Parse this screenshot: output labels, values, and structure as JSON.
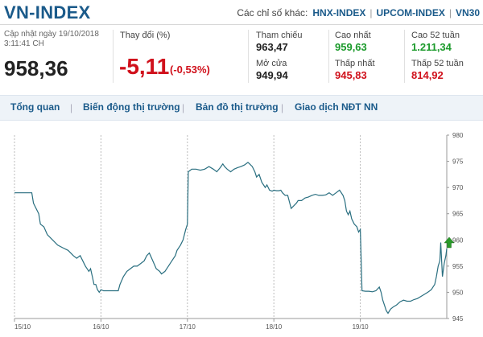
{
  "header": {
    "index_name": "VN-INDEX",
    "other_label": "Các chỉ số khác:",
    "links": [
      "HNX-INDEX",
      "UPCOM-INDEX",
      "VN30"
    ],
    "separators": [
      "|",
      "|"
    ]
  },
  "stats": {
    "updated_line1": "Cập nhật ngày 19/10/2018",
    "updated_line2": "3:11:41 CH",
    "current_value": "958,36",
    "change_label": "Thay đổi (%)",
    "change_value": "-5,11",
    "change_percent": "(-0,53%)",
    "ref_label": "Tham chiếu",
    "ref_value": "963,47",
    "open_label": "Mở cửa",
    "open_value": "949,94",
    "high_label": "Cao nhất",
    "high_value": "959,63",
    "low_label": "Thấp nhất",
    "low_value": "945,83",
    "high52_label": "Cao 52 tuần",
    "high52_value": "1.211,34",
    "low52_label": "Thấp 52 tuần",
    "low52_value": "814,92"
  },
  "nav": {
    "items": [
      "Tổng quan",
      "Biến động thị trường",
      "Bản đồ thị trường",
      "Giao dịch NĐT NN"
    ],
    "separator": "|"
  },
  "colors": {
    "title_blue": "#1a5a8a",
    "down_red": "#d0101b",
    "up_green": "#1a9a2a",
    "line": "#2a6f80"
  },
  "chart_data": {
    "type": "line",
    "x_labels": [
      "15/10",
      "16/10",
      "17/10",
      "18/10",
      "19/10"
    ],
    "y_ticks": [
      "945",
      "950",
      "955",
      "960",
      "965",
      "970",
      "975",
      "980"
    ],
    "ylim": [
      945,
      980
    ],
    "grid": "vertical dotted at day boundaries",
    "marker": "up-arrow-icon at last point",
    "series": [
      {
        "points": [
          [
            0,
            969
          ],
          [
            0.08,
            969
          ],
          [
            0.1,
            969
          ],
          [
            0.12,
            969
          ],
          [
            0.2,
            969
          ],
          [
            0.22,
            967
          ],
          [
            0.28,
            965
          ],
          [
            0.3,
            963
          ],
          [
            0.34,
            962.5
          ],
          [
            0.38,
            961
          ],
          [
            0.44,
            960
          ],
          [
            0.5,
            959
          ],
          [
            0.56,
            958.5
          ],
          [
            0.62,
            958
          ],
          [
            0.68,
            957
          ],
          [
            0.72,
            956.5
          ],
          [
            0.76,
            957
          ],
          [
            0.82,
            955
          ],
          [
            0.86,
            954
          ],
          [
            0.88,
            954.5
          ],
          [
            0.9,
            953
          ],
          [
            0.92,
            951.5
          ],
          [
            0.94,
            951.5
          ],
          [
            0.96,
            950.5
          ],
          [
            0.98,
            950
          ],
          [
            1.0,
            950.5
          ],
          [
            1.03,
            950.3
          ],
          [
            1.07,
            950.3
          ],
          [
            1.1,
            950.3
          ],
          [
            1.15,
            950.3
          ],
          [
            1.2,
            950.3
          ],
          [
            1.22,
            951.5
          ],
          [
            1.26,
            953
          ],
          [
            1.3,
            954
          ],
          [
            1.34,
            954.5
          ],
          [
            1.38,
            955
          ],
          [
            1.42,
            955
          ],
          [
            1.46,
            955.5
          ],
          [
            1.5,
            956
          ],
          [
            1.53,
            957
          ],
          [
            1.56,
            957.5
          ],
          [
            1.6,
            956
          ],
          [
            1.64,
            954.5
          ],
          [
            1.68,
            954
          ],
          [
            1.7,
            953.5
          ],
          [
            1.74,
            954
          ],
          [
            1.78,
            955
          ],
          [
            1.82,
            956
          ],
          [
            1.86,
            957
          ],
          [
            1.88,
            958
          ],
          [
            1.92,
            959
          ],
          [
            1.95,
            960
          ],
          [
            1.98,
            962
          ],
          [
            2.0,
            963
          ],
          [
            2.01,
            973
          ],
          [
            2.05,
            973.5
          ],
          [
            2.1,
            973.5
          ],
          [
            2.15,
            973.3
          ],
          [
            2.2,
            973.5
          ],
          [
            2.25,
            974
          ],
          [
            2.3,
            973.5
          ],
          [
            2.34,
            973
          ],
          [
            2.38,
            973.8
          ],
          [
            2.41,
            974.5
          ],
          [
            2.43,
            974
          ],
          [
            2.46,
            973.5
          ],
          [
            2.5,
            973
          ],
          [
            2.54,
            973.5
          ],
          [
            2.58,
            973.8
          ],
          [
            2.62,
            974
          ],
          [
            2.66,
            974.3
          ],
          [
            2.7,
            974.8
          ],
          [
            2.72,
            974.5
          ],
          [
            2.75,
            974
          ],
          [
            2.78,
            973
          ],
          [
            2.8,
            972
          ],
          [
            2.83,
            972.5
          ],
          [
            2.86,
            971
          ],
          [
            2.9,
            970
          ],
          [
            2.92,
            970.5
          ],
          [
            2.95,
            969.5
          ],
          [
            2.98,
            969.3
          ],
          [
            3.0,
            969.5
          ],
          [
            3.03,
            969.4
          ],
          [
            3.06,
            969.4
          ],
          [
            3.08,
            969.5
          ],
          [
            3.1,
            969
          ],
          [
            3.13,
            968.5
          ],
          [
            3.16,
            968.5
          ],
          [
            3.2,
            966
          ],
          [
            3.23,
            966.5
          ],
          [
            3.26,
            967
          ],
          [
            3.28,
            967.5
          ],
          [
            3.32,
            967.5
          ],
          [
            3.36,
            968
          ],
          [
            3.4,
            968.2
          ],
          [
            3.44,
            968.5
          ],
          [
            3.48,
            968.7
          ],
          [
            3.52,
            968.5
          ],
          [
            3.56,
            968.5
          ],
          [
            3.6,
            968.6
          ],
          [
            3.64,
            969
          ],
          [
            3.68,
            968.5
          ],
          [
            3.72,
            969
          ],
          [
            3.76,
            969.5
          ],
          [
            3.8,
            968.5
          ],
          [
            3.82,
            967.5
          ],
          [
            3.84,
            965.5
          ],
          [
            3.86,
            964.8
          ],
          [
            3.88,
            965.5
          ],
          [
            3.9,
            964
          ],
          [
            3.93,
            963
          ],
          [
            3.96,
            962.5
          ],
          [
            3.98,
            961.5
          ],
          [
            4.0,
            962
          ],
          [
            4.02,
            950.3
          ],
          [
            4.06,
            950.2
          ],
          [
            4.1,
            950.2
          ],
          [
            4.14,
            950.1
          ],
          [
            4.18,
            950.3
          ],
          [
            4.22,
            951
          ],
          [
            4.24,
            950
          ],
          [
            4.26,
            948.5
          ],
          [
            4.28,
            947.5
          ],
          [
            4.3,
            946.5
          ],
          [
            4.32,
            946
          ],
          [
            4.35,
            946.8
          ],
          [
            4.38,
            947.2
          ],
          [
            4.42,
            947.6
          ],
          [
            4.46,
            948.2
          ],
          [
            4.5,
            948.5
          ],
          [
            4.54,
            948.3
          ],
          [
            4.58,
            948.3
          ],
          [
            4.62,
            948.6
          ],
          [
            4.66,
            948.8
          ],
          [
            4.7,
            949.2
          ],
          [
            4.74,
            949.6
          ],
          [
            4.78,
            950
          ],
          [
            4.82,
            950.5
          ],
          [
            4.86,
            951.5
          ],
          [
            4.88,
            953
          ],
          [
            4.9,
            955
          ],
          [
            4.92,
            956
          ],
          [
            4.93,
            959.5
          ],
          [
            4.95,
            953
          ],
          [
            4.97,
            955.5
          ],
          [
            4.99,
            957
          ],
          [
            5.0,
            958.36
          ]
        ]
      }
    ]
  }
}
